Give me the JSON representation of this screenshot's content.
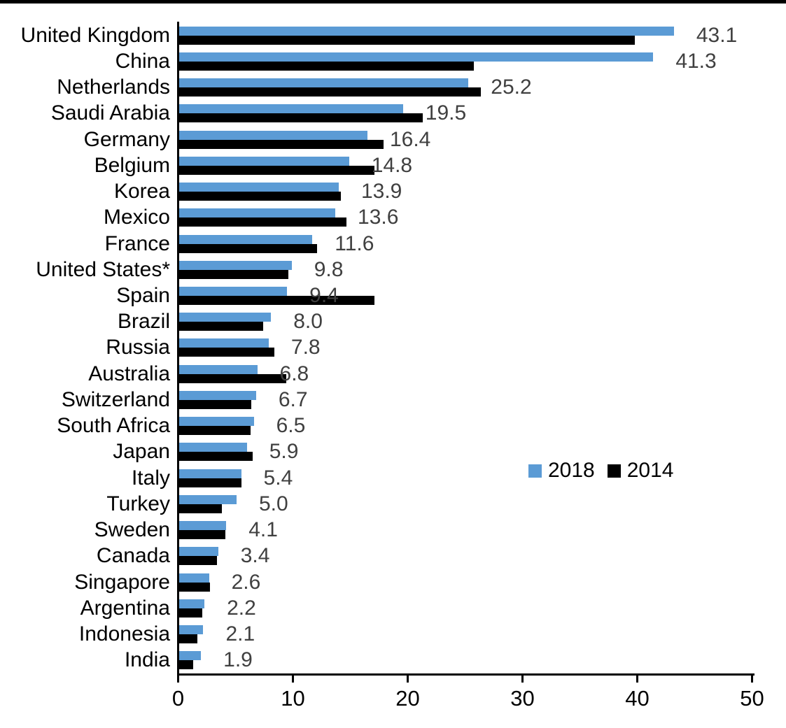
{
  "chart_data": {
    "type": "bar",
    "orientation": "horizontal",
    "categories": [
      "United Kingdom",
      "China",
      "Netherlands",
      "Saudi Arabia",
      "Germany",
      "Belgium",
      "Korea",
      "Mexico",
      "France",
      "United States*",
      "Spain",
      "Brazil",
      "Russia",
      "Australia",
      "Switzerland",
      "South Africa",
      "Japan",
      "Italy",
      "Turkey",
      "Sweden",
      "Canada",
      "Singapore",
      "Argentina",
      "Indonesia",
      "India"
    ],
    "series": [
      {
        "name": "2018",
        "color": "#5B9BD5",
        "values": [
          43.1,
          41.3,
          25.2,
          19.5,
          16.4,
          14.8,
          13.9,
          13.6,
          11.6,
          9.8,
          9.4,
          8.0,
          7.8,
          6.8,
          6.7,
          6.5,
          5.9,
          5.4,
          5.0,
          4.1,
          3.4,
          2.6,
          2.2,
          2.1,
          1.9
        ],
        "data_labels": [
          "43.1",
          "41.3",
          "25.2",
          "19.5",
          "16.4",
          "14.8",
          "13.9",
          "13.6",
          "11.6",
          "9.8",
          "9.4",
          "8.0",
          "7.8",
          "6.8",
          "6.7",
          "6.5",
          "5.9",
          "5.4",
          "5.0",
          "4.1",
          "3.4",
          "2.6",
          "2.2",
          "2.1",
          "1.9"
        ]
      },
      {
        "name": "2014",
        "color": "#000000",
        "values": [
          39.7,
          25.7,
          26.3,
          21.2,
          17.8,
          17.0,
          14.1,
          14.6,
          12.0,
          9.5,
          17.0,
          7.3,
          8.3,
          9.3,
          6.3,
          6.2,
          6.4,
          5.4,
          3.7,
          4.0,
          3.3,
          2.7,
          2.0,
          1.6,
          1.2
        ]
      }
    ],
    "xlim": [
      0,
      50
    ],
    "x_ticks": [
      "0",
      "10",
      "20",
      "30",
      "40",
      "50"
    ],
    "legend": {
      "position": "middle-right",
      "entries": [
        "2018",
        "2014"
      ]
    },
    "value_label_color": "#404040",
    "axis_color": "#000000",
    "grid": false,
    "title": "",
    "xlabel": "",
    "ylabel": ""
  }
}
